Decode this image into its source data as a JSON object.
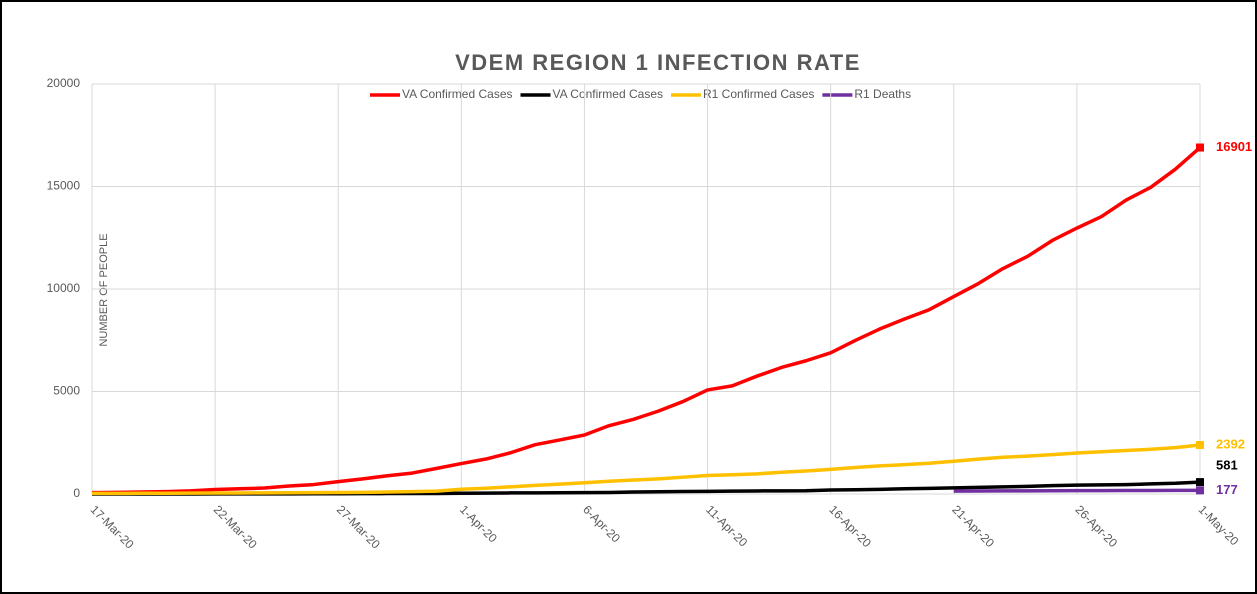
{
  "chart_data": {
    "type": "line",
    "title": "VDEM REGION 1 INFECTION RATE",
    "y_label": "NUMBER OF PEOPLE",
    "categories": [
      "17-Mar-20",
      null,
      null,
      null,
      null,
      "22-Mar-20",
      null,
      null,
      null,
      null,
      "27-Mar-20",
      null,
      null,
      null,
      null,
      "1-Apr-20",
      null,
      null,
      null,
      null,
      "6-Apr-20",
      null,
      null,
      null,
      null,
      "11-Apr-20",
      null,
      null,
      null,
      null,
      "16-Apr-20",
      null,
      null,
      null,
      null,
      "21-Apr-20",
      null,
      null,
      null,
      null,
      "26-Apr-20",
      null,
      null,
      null,
      null,
      "1-May-20"
    ],
    "series": [
      {
        "name": "VA Confirmed Cases",
        "color": "#ff0000",
        "values": [
          67,
          77,
          99,
          114,
          152,
          219,
          254,
          290,
          391,
          460,
          604,
          739,
          890,
          1020,
          1250,
          1484,
          1706,
          2012,
          2407,
          2637,
          2878,
          3333,
          3645,
          4042,
          4509,
          5077,
          5274,
          5747,
          6171,
          6500,
          6889,
          7491,
          8053,
          8537,
          8990,
          9630,
          10266,
          10998,
          11594,
          12366,
          12970,
          13535,
          14339,
          14961,
          15846,
          16901
        ]
      },
      {
        "name": "VA Confirmed Cases",
        "color": "#000000",
        "values": [
          2,
          2,
          2,
          2,
          3,
          5,
          6,
          7,
          9,
          13,
          14,
          17,
          22,
          25,
          27,
          34,
          41,
          52,
          54,
          63,
          69,
          75,
          99,
          109,
          121,
          130,
          141,
          149,
          154,
          158,
          195,
          208,
          225,
          258,
          277,
          300,
          324,
          349,
          372,
          410,
          433,
          448,
          460,
          492,
          522,
          581
        ]
      },
      {
        "name": "R1 Confirmed Cases",
        "color": "#ffc000",
        "values": [
          30,
          32,
          35,
          38,
          42,
          46,
          50,
          55,
          60,
          65,
          72,
          80,
          95,
          115,
          140,
          230,
          280,
          350,
          420,
          480,
          550,
          620,
          680,
          740,
          820,
          900,
          940,
          980,
          1060,
          1120,
          1200,
          1290,
          1370,
          1430,
          1500,
          1600,
          1700,
          1790,
          1850,
          1920,
          2000,
          2060,
          2120,
          2180,
          2260,
          2392
        ]
      },
      {
        "name": "R1 Deaths",
        "color": "#7030a0",
        "values": [
          null,
          null,
          null,
          null,
          null,
          null,
          null,
          null,
          null,
          null,
          null,
          null,
          null,
          null,
          null,
          null,
          null,
          null,
          null,
          null,
          null,
          null,
          null,
          null,
          null,
          null,
          null,
          null,
          null,
          null,
          null,
          null,
          null,
          null,
          null,
          140,
          145,
          150,
          155,
          158,
          162,
          165,
          168,
          171,
          174,
          177
        ]
      }
    ],
    "ylim": [
      0,
      20000
    ],
    "yticks": [
      0,
      5000,
      10000,
      15000,
      20000
    ],
    "grid": true,
    "legend": "top"
  }
}
